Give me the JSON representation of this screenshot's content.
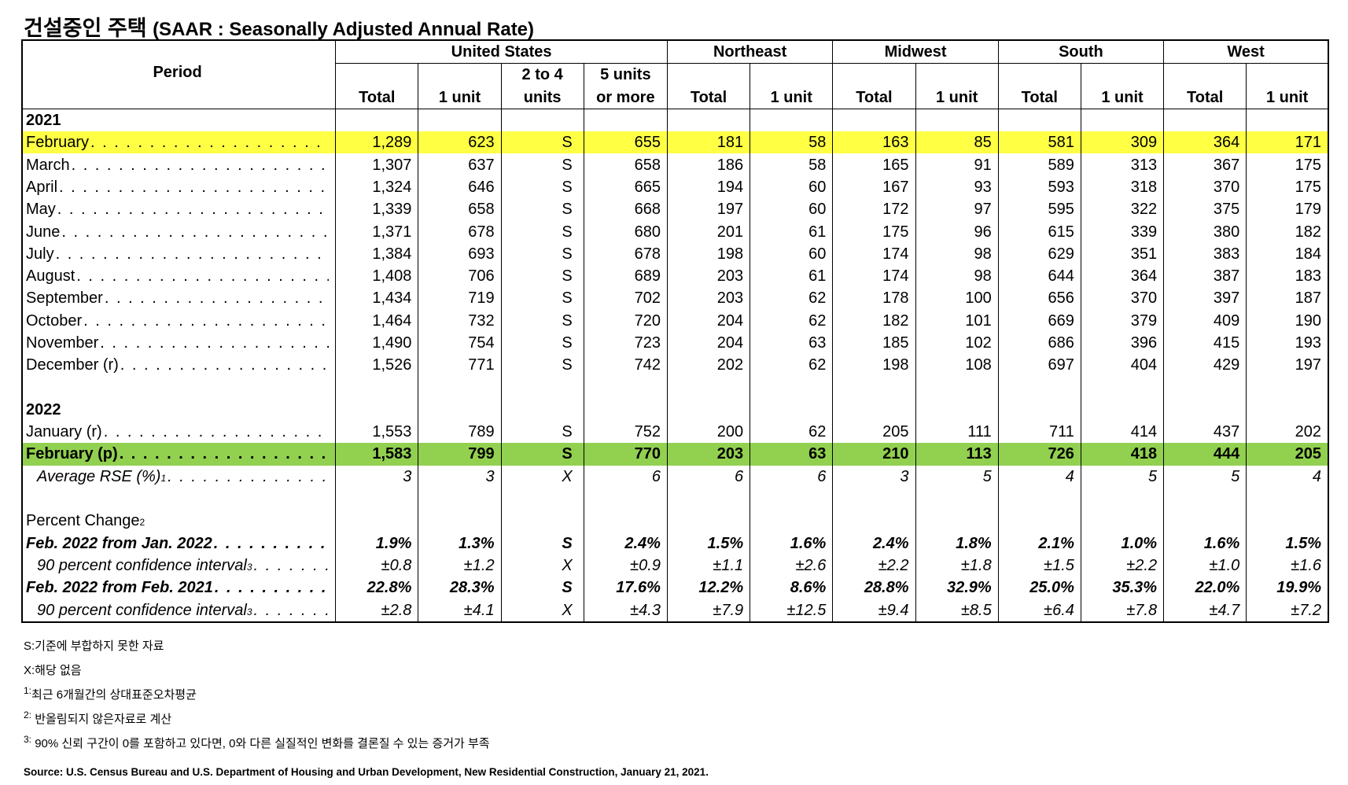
{
  "title": {
    "main": "건설중인 주택",
    "sub": "(SAAR : Seasonally Adjusted Annual Rate)"
  },
  "header": {
    "period": "Period",
    "groups": [
      "United States",
      "Northeast",
      "Midwest",
      "South",
      "West"
    ],
    "us_cols": {
      "total": "Total",
      "one_unit": "1 unit",
      "two_to_four_a": "2 to 4",
      "two_to_four_b": "units",
      "five_plus_a": "5 units",
      "five_plus_b": "or more"
    },
    "total": "Total",
    "one_unit": "1 unit"
  },
  "year_2021": "2021",
  "year_2022": "2022",
  "rows_2021": [
    {
      "label": "February",
      "v": [
        "1,289",
        "623",
        "S",
        "655",
        "181",
        "58",
        "163",
        "85",
        "581",
        "309",
        "364",
        "171"
      ]
    },
    {
      "label": "March",
      "v": [
        "1,307",
        "637",
        "S",
        "658",
        "186",
        "58",
        "165",
        "91",
        "589",
        "313",
        "367",
        "175"
      ]
    },
    {
      "label": "April",
      "v": [
        "1,324",
        "646",
        "S",
        "665",
        "194",
        "60",
        "167",
        "93",
        "593",
        "318",
        "370",
        "175"
      ]
    },
    {
      "label": "May",
      "v": [
        "1,339",
        "658",
        "S",
        "668",
        "197",
        "60",
        "172",
        "97",
        "595",
        "322",
        "375",
        "179"
      ]
    },
    {
      "label": "June",
      "v": [
        "1,371",
        "678",
        "S",
        "680",
        "201",
        "61",
        "175",
        "96",
        "615",
        "339",
        "380",
        "182"
      ]
    },
    {
      "label": "July",
      "v": [
        "1,384",
        "693",
        "S",
        "678",
        "198",
        "60",
        "174",
        "98",
        "629",
        "351",
        "383",
        "184"
      ]
    },
    {
      "label": "August",
      "v": [
        "1,408",
        "706",
        "S",
        "689",
        "203",
        "61",
        "174",
        "98",
        "644",
        "364",
        "387",
        "183"
      ]
    },
    {
      "label": "September",
      "v": [
        "1,434",
        "719",
        "S",
        "702",
        "203",
        "62",
        "178",
        "100",
        "656",
        "370",
        "397",
        "187"
      ]
    },
    {
      "label": "October",
      "v": [
        "1,464",
        "732",
        "S",
        "720",
        "204",
        "62",
        "182",
        "101",
        "669",
        "379",
        "409",
        "190"
      ]
    },
    {
      "label": "November",
      "v": [
        "1,490",
        "754",
        "S",
        "723",
        "204",
        "63",
        "185",
        "102",
        "686",
        "396",
        "415",
        "193"
      ]
    },
    {
      "label": "December (r)",
      "v": [
        "1,526",
        "771",
        "S",
        "742",
        "202",
        "62",
        "198",
        "108",
        "697",
        "404",
        "429",
        "197"
      ]
    }
  ],
  "rows_2022": [
    {
      "label": "January (r)",
      "v": [
        "1,553",
        "789",
        "S",
        "752",
        "200",
        "62",
        "205",
        "111",
        "711",
        "414",
        "437",
        "202"
      ]
    },
    {
      "label": "February (p)",
      "v": [
        "1,583",
        "799",
        "S",
        "770",
        "203",
        "63",
        "210",
        "113",
        "726",
        "418",
        "444",
        "205"
      ]
    }
  ],
  "rse": {
    "label": "Average RSE (%)",
    "sup": "1",
    "v": [
      "3",
      "3",
      "X",
      "6",
      "6",
      "6",
      "3",
      "5",
      "4",
      "5",
      "5",
      "4"
    ]
  },
  "pct_change": {
    "label": "Percent Change",
    "sup": "2"
  },
  "change_rows": [
    {
      "label": "Feb. 2022 from Jan. 2022",
      "v": [
        "1.9%",
        "1.3%",
        "S",
        "2.4%",
        "1.5%",
        "1.6%",
        "2.4%",
        "1.8%",
        "2.1%",
        "1.0%",
        "1.6%",
        "1.5%"
      ]
    },
    {
      "label": "90 percent confidence interval",
      "sup": "3",
      "v": [
        "±0.8",
        "±1.2",
        "X",
        "±0.9",
        "±1.1",
        "±2.6",
        "±2.2",
        "±1.8",
        "±1.5",
        "±2.2",
        "±1.0",
        "±1.6"
      ]
    },
    {
      "label": "Feb. 2022 from Feb. 2021",
      "v": [
        "22.8%",
        "28.3%",
        "S",
        "17.6%",
        "12.2%",
        "8.6%",
        "28.8%",
        "32.9%",
        "25.0%",
        "35.3%",
        "22.0%",
        "19.9%"
      ]
    },
    {
      "label": "90 percent confidence interval",
      "sup": "3",
      "v": [
        "±2.8",
        "±4.1",
        "X",
        "±4.3",
        "±7.9",
        "±12.5",
        "±9.4",
        "±8.5",
        "±6.4",
        "±7.8",
        "±4.7",
        "±7.2"
      ]
    }
  ],
  "notes": {
    "s": "S:기준에 부합하지 못한 자료",
    "x": "X:해당 없음",
    "n1_sup": "1:",
    "n1": "최근 6개월간의 상대표준오차평균",
    "n2_sup": "2:",
    "n2": "반올림되지 않은자료로 계산",
    "n3_sup": "3:",
    "n3": "90% 신뢰 구간이 0를 포함하고 있다면, 0와 다른 실질적인 변화를 결론질 수 있는 증거가 부족"
  },
  "source": "Source: U.S. Census Bureau and U.S. Department of Housing and Urban Development, New Residential Construction, January 21, 2021."
}
